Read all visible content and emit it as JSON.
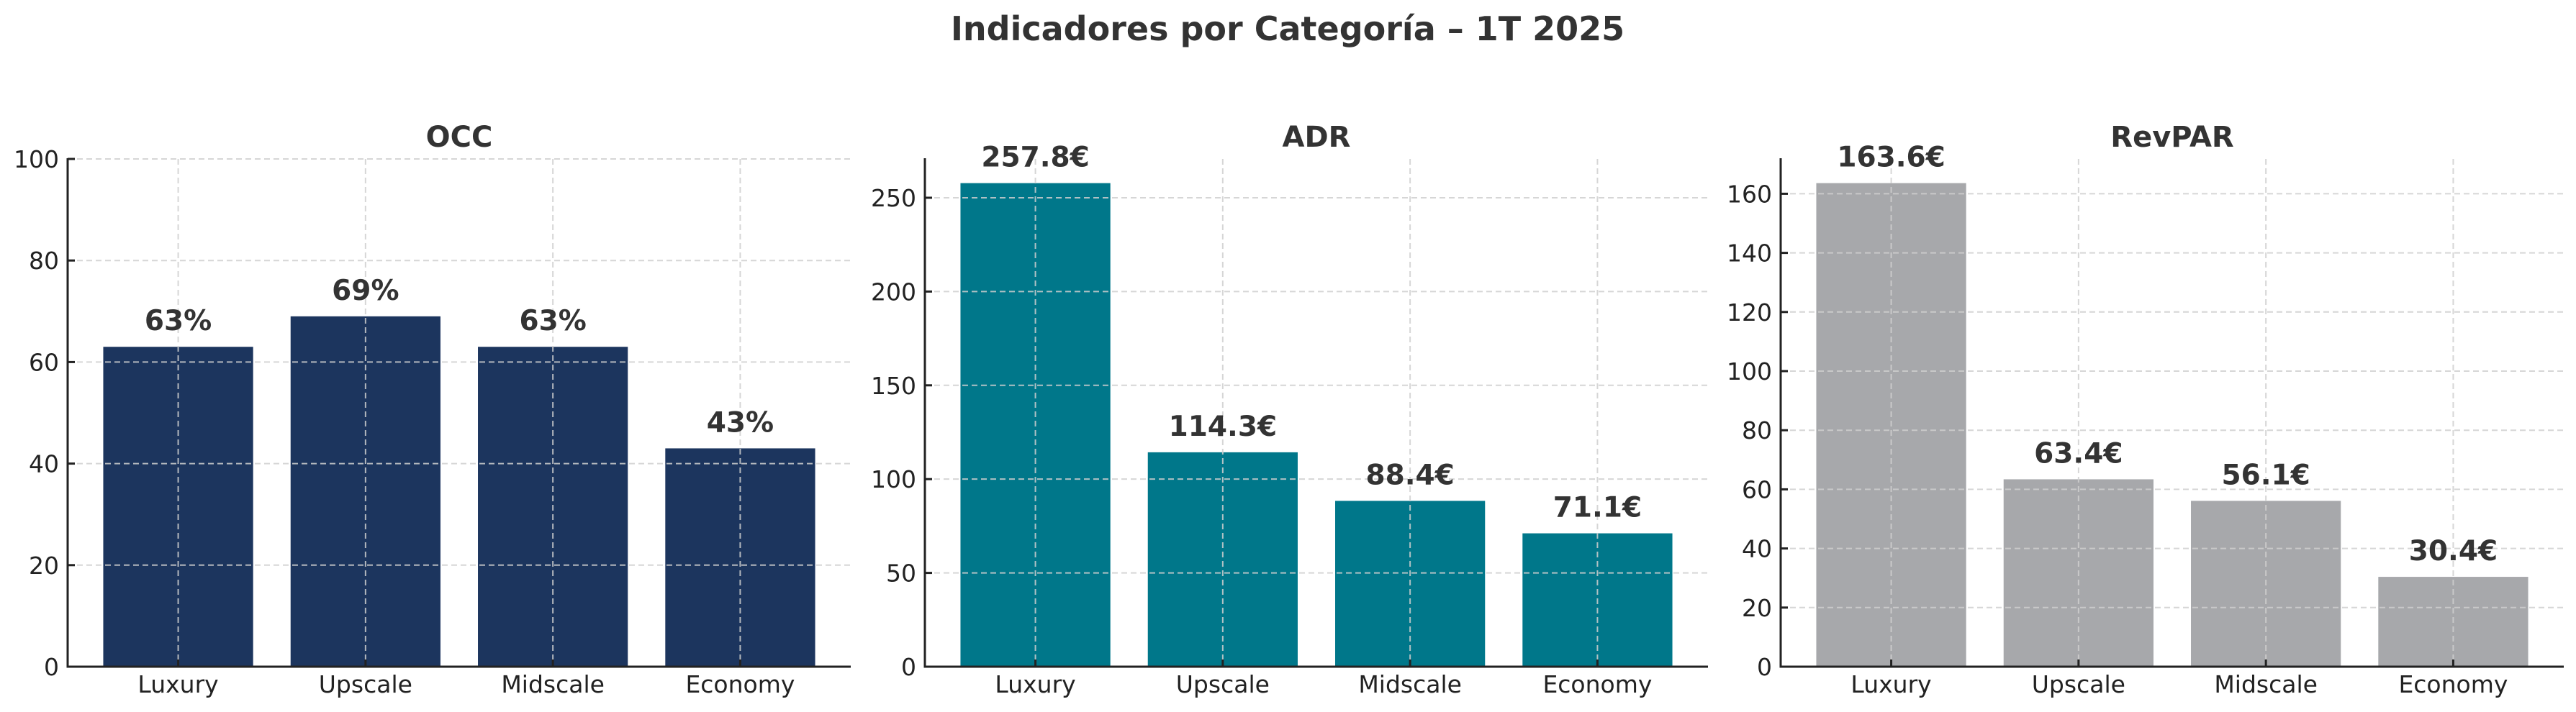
{
  "figure": {
    "title": "Indicadores por Categoría – 1T 2025"
  },
  "chart_data": [
    {
      "type": "bar",
      "title": "OCC",
      "categories": [
        "Luxury",
        "Upscale",
        "Midscale",
        "Economy"
      ],
      "values": [
        63,
        69,
        63,
        43
      ],
      "value_labels": [
        "63%",
        "69%",
        "63%",
        "43%"
      ],
      "xlabel": "",
      "ylabel": "",
      "ylim": [
        0,
        100
      ],
      "yticks": [
        0,
        20,
        40,
        60,
        80,
        100
      ],
      "ytick_labels": [
        "0",
        "20",
        "40",
        "60",
        "80",
        "100"
      ],
      "color": "#1c355e",
      "grid": true
    },
    {
      "type": "bar",
      "title": "ADR",
      "categories": [
        "Luxury",
        "Upscale",
        "Midscale",
        "Economy"
      ],
      "values": [
        257.8,
        114.3,
        88.4,
        71.1
      ],
      "value_labels": [
        "257.8€",
        "114.3€",
        "88.4€",
        "71.1€"
      ],
      "xlabel": "",
      "ylabel": "",
      "ylim": [
        0,
        270.69
      ],
      "yticks": [
        0,
        50,
        100,
        150,
        200,
        250
      ],
      "ytick_labels": [
        "0",
        "50",
        "100",
        "150",
        "200",
        "250"
      ],
      "color": "#00778a",
      "grid": true
    },
    {
      "type": "bar",
      "title": "RevPAR",
      "categories": [
        "Luxury",
        "Upscale",
        "Midscale",
        "Economy"
      ],
      "values": [
        163.6,
        63.4,
        56.1,
        30.4
      ],
      "value_labels": [
        "163.6€",
        "63.4€",
        "56.1€",
        "30.4€"
      ],
      "xlabel": "",
      "ylabel": "",
      "ylim": [
        0,
        171.78
      ],
      "yticks": [
        0,
        20,
        40,
        60,
        80,
        100,
        120,
        140,
        160
      ],
      "ytick_labels": [
        "0",
        "20",
        "40",
        "60",
        "80",
        "100",
        "120",
        "140",
        "160"
      ],
      "color": "#a7a8ab",
      "grid": true
    }
  ]
}
